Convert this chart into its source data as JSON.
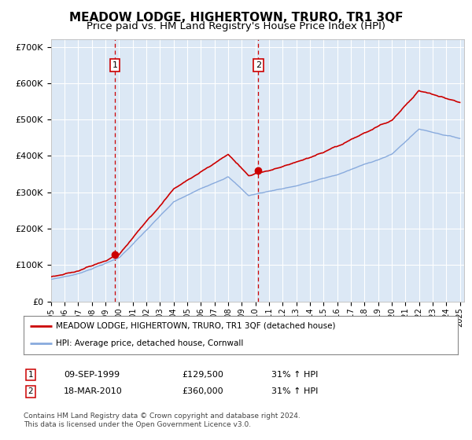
{
  "title": "MEADOW LODGE, HIGHERTOWN, TRURO, TR1 3QF",
  "subtitle": "Price paid vs. HM Land Registry's House Price Index (HPI)",
  "title_fontsize": 11,
  "subtitle_fontsize": 9.5,
  "bg_color": "#dce8f5",
  "fig_bg_color": "#ffffff",
  "grid_color": "#ffffff",
  "sale1_year": 1999.69,
  "sale1_price": 129500,
  "sale2_year": 2010.21,
  "sale2_price": 360000,
  "ylim": [
    0,
    720000
  ],
  "yticks": [
    0,
    100000,
    200000,
    300000,
    400000,
    500000,
    600000,
    700000
  ],
  "ytick_labels": [
    "£0",
    "£100K",
    "£200K",
    "£300K",
    "£400K",
    "£500K",
    "£600K",
    "£700K"
  ],
  "red_line_color": "#cc0000",
  "blue_line_color": "#88aadd",
  "legend_label_red": "MEADOW LODGE, HIGHERTOWN, TRURO, TR1 3QF (detached house)",
  "legend_label_blue": "HPI: Average price, detached house, Cornwall",
  "footnote": "Contains HM Land Registry data © Crown copyright and database right 2024.\nThis data is licensed under the Open Government Licence v3.0.",
  "table_row1": [
    "1",
    "09-SEP-1999",
    "£129,500",
    "31% ↑ HPI"
  ],
  "table_row2": [
    "2",
    "18-MAR-2010",
    "£360,000",
    "31% ↑ HPI"
  ]
}
